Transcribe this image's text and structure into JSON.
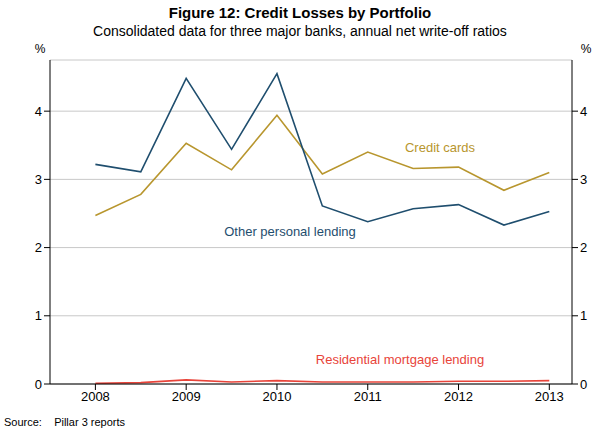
{
  "chart_data": {
    "type": "line",
    "title": "Figure 12: Credit Losses by Portfolio",
    "subtitle": "Consolidated data for three major banks, annual net write-off ratios",
    "ylabel": "%",
    "y2label": "%",
    "source": "Source:    Pillar 3 reports",
    "x": [
      2008.5,
      2009.0,
      2009.5,
      2010.0,
      2010.5,
      2011.0,
      2011.5,
      2012.0,
      2012.5,
      2013.0,
      2013.5
    ],
    "xlim": [
      2008,
      2013.75
    ],
    "xticks": [
      {
        "value": 2008.5,
        "label": "2008"
      },
      {
        "value": 2009.5,
        "label": "2009"
      },
      {
        "value": 2010.5,
        "label": "2010"
      },
      {
        "value": 2011.5,
        "label": "2011"
      },
      {
        "value": 2012.5,
        "label": "2012"
      },
      {
        "value": 2013.5,
        "label": "2013"
      }
    ],
    "ylim": [
      0,
      4.75
    ],
    "yticks": [
      0,
      1,
      2,
      3,
      4
    ],
    "y2lim": [
      0,
      4.75
    ],
    "y2ticks": [
      0,
      1,
      2,
      3,
      4
    ],
    "grid": true,
    "series": [
      {
        "name": "Credit cards",
        "color": "#b8962e",
        "values": [
          2.47,
          2.78,
          3.53,
          3.14,
          3.94,
          3.08,
          3.4,
          3.16,
          3.18,
          2.84,
          3.1
        ]
      },
      {
        "name": "Other personal lending",
        "color": "#1f4e6e",
        "values": [
          3.22,
          3.11,
          4.48,
          3.44,
          4.55,
          2.61,
          2.38,
          2.57,
          2.63,
          2.33,
          2.53
        ]
      },
      {
        "name": "Residential mortgage lending",
        "color": "#e8443a",
        "values": [
          0.01,
          0.02,
          0.06,
          0.03,
          0.05,
          0.03,
          0.03,
          0.03,
          0.04,
          0.04,
          0.05
        ]
      }
    ]
  }
}
